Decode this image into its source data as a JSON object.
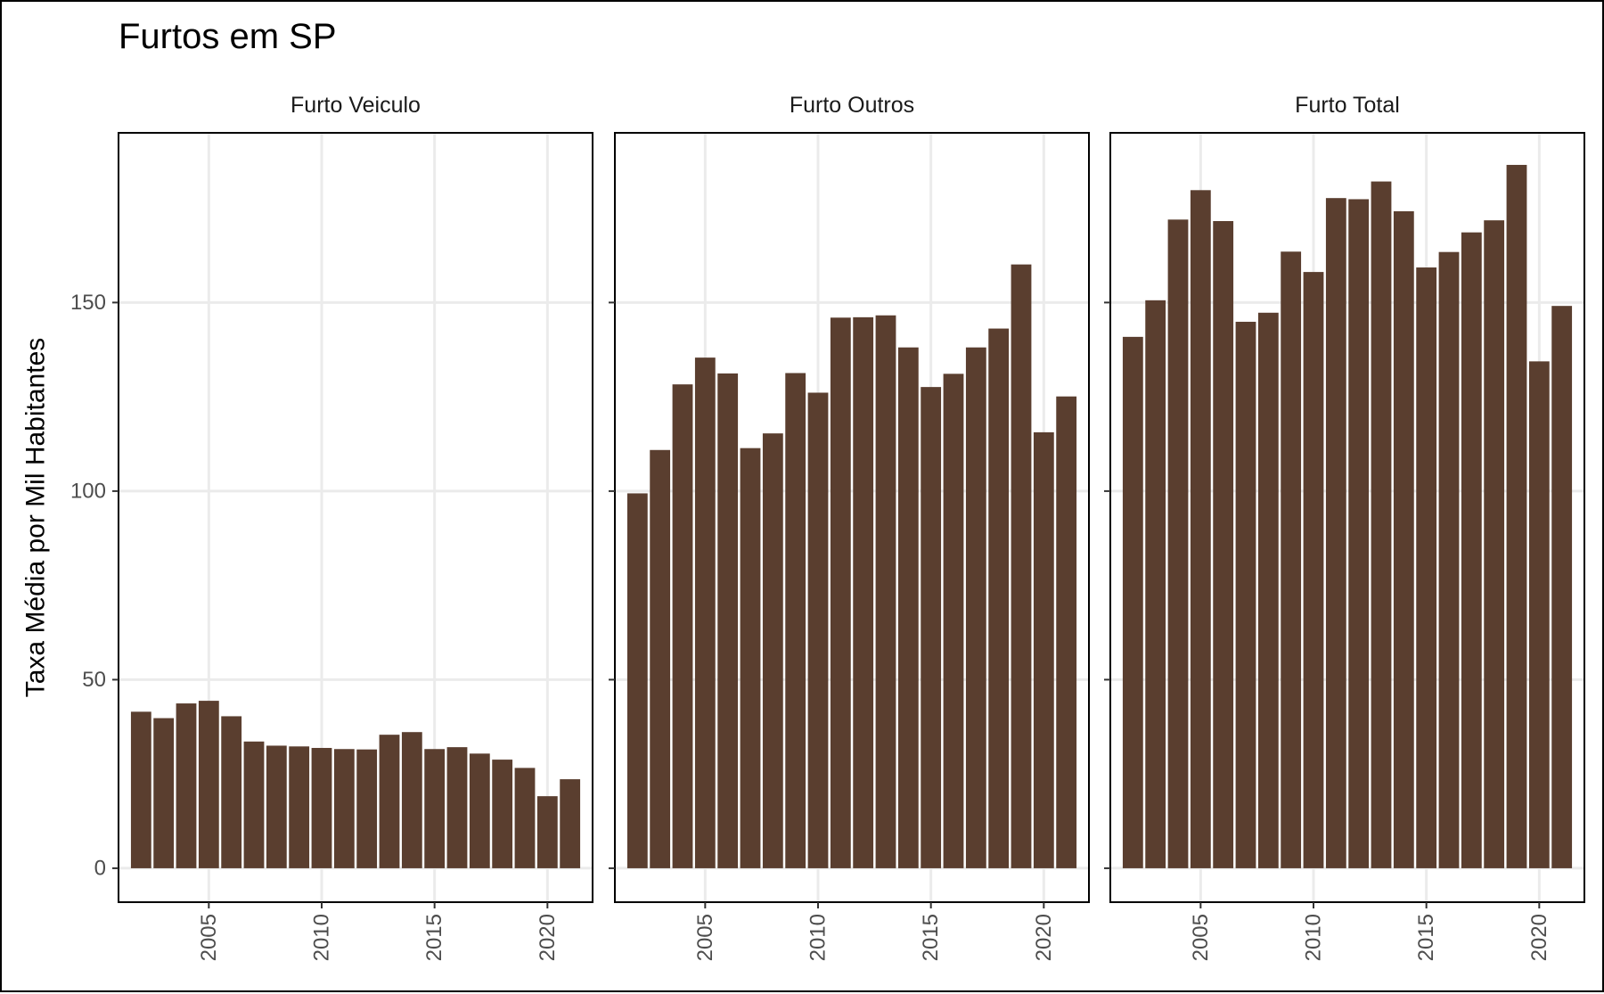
{
  "chart_data": {
    "type": "bar",
    "title": "Furtos em SP",
    "ylabel": "Taxa Média por Mil Habitantes",
    "xlabel": "",
    "bar_color": "#5a3e2f",
    "ylim": [
      -9,
      195
    ],
    "yticks": [
      0,
      50,
      100,
      150
    ],
    "xticks": [
      2005,
      2010,
      2015,
      2020
    ],
    "x": [
      2002,
      2003,
      2004,
      2005,
      2006,
      2007,
      2008,
      2009,
      2010,
      2011,
      2012,
      2013,
      2014,
      2015,
      2016,
      2017,
      2018,
      2019,
      2020,
      2021
    ],
    "panels": [
      {
        "name": "Furto Veiculo",
        "values": [
          41.5,
          39.8,
          43.7,
          44.4,
          40.3,
          33.6,
          32.5,
          32.3,
          31.9,
          31.6,
          31.5,
          35.4,
          36.1,
          31.6,
          32.1,
          30.4,
          28.8,
          26.6,
          19.1,
          23.6
        ]
      },
      {
        "name": "Furto Outros",
        "values": [
          99.4,
          110.9,
          128.3,
          135.4,
          131.2,
          111.4,
          115.3,
          131.3,
          126.1,
          146.0,
          146.1,
          146.6,
          138.1,
          127.6,
          131.1,
          138.1,
          143.1,
          160.1,
          115.6,
          125.1
        ]
      },
      {
        "name": "Furto Total",
        "values": [
          140.9,
          150.6,
          172.0,
          179.8,
          171.6,
          144.9,
          147.3,
          163.5,
          158.1,
          177.7,
          177.4,
          182.1,
          174.2,
          159.3,
          163.4,
          168.6,
          171.8,
          186.5,
          134.4,
          149.1
        ]
      }
    ]
  }
}
